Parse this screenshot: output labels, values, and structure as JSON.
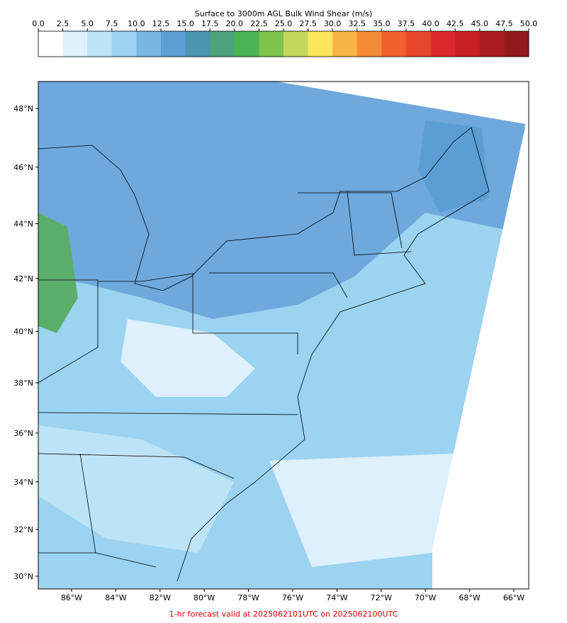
{
  "colorbar": {
    "title": "Surface to 3000m AGL Bulk Wind Shear (m/s)",
    "ticks": [
      {
        "value": 0,
        "label": "0.0"
      },
      {
        "value": 2.5,
        "label": "2.5"
      },
      {
        "value": 5,
        "label": "5.0"
      },
      {
        "value": 7.5,
        "label": "7.5"
      },
      {
        "value": 10,
        "label": "10.0"
      },
      {
        "value": 12.5,
        "label": "12.5"
      },
      {
        "value": 15,
        "label": "15.0"
      },
      {
        "value": 17.5,
        "label": "17.5"
      },
      {
        "value": 20,
        "label": "20.0"
      },
      {
        "value": 22.5,
        "label": "22.5"
      },
      {
        "value": 25,
        "label": "25.0"
      },
      {
        "value": 27.5,
        "label": "27.5"
      },
      {
        "value": 30,
        "label": "30.0"
      },
      {
        "value": 32.5,
        "label": "32.5"
      },
      {
        "value": 35,
        "label": "35.0"
      },
      {
        "value": 37.5,
        "label": "37.5"
      },
      {
        "value": 40,
        "label": "40.0"
      },
      {
        "value": 42.5,
        "label": "42.5"
      },
      {
        "value": 45,
        "label": "45.0"
      },
      {
        "value": 47.5,
        "label": "47.5"
      },
      {
        "value": 50,
        "label": "50.0"
      }
    ],
    "colors": [
      "#ffffff",
      "#ddf0fb",
      "#bde3f6",
      "#9bd3f0",
      "#78b7e2",
      "#5c9ed4",
      "#4a95b0",
      "#4aa37c",
      "#4ab355",
      "#7ec44c",
      "#c2d65a",
      "#f9e45a",
      "#f7b547",
      "#f48a35",
      "#f05f2c",
      "#e6472a",
      "#d9292a",
      "#c71e24",
      "#aa1c21",
      "#921a1c"
    ]
  },
  "map": {
    "lat_ticks": [
      {
        "value": 48,
        "label": "48°N"
      },
      {
        "value": 46,
        "label": "46°N"
      },
      {
        "value": 44,
        "label": "44°N"
      },
      {
        "value": 42,
        "label": "42°N"
      },
      {
        "value": 40,
        "label": "40°N"
      },
      {
        "value": 38,
        "label": "38°N"
      },
      {
        "value": 36,
        "label": "36°N"
      },
      {
        "value": 34,
        "label": "34°N"
      },
      {
        "value": 32,
        "label": "32°N"
      },
      {
        "value": 30,
        "label": "30°N"
      }
    ],
    "lon_ticks": [
      {
        "value": -86,
        "label": "86°W"
      },
      {
        "value": -84,
        "label": "84°W"
      },
      {
        "value": -82,
        "label": "82°W"
      },
      {
        "value": -80,
        "label": "80°W"
      },
      {
        "value": -78,
        "label": "78°W"
      },
      {
        "value": -76,
        "label": "76°W"
      },
      {
        "value": -74,
        "label": "74°W"
      },
      {
        "value": -72,
        "label": "72°W"
      },
      {
        "value": -70,
        "label": "70°W"
      },
      {
        "value": -68,
        "label": "68°W"
      },
      {
        "value": -66,
        "label": "66°W"
      }
    ]
  },
  "footer": "1-hr forecast valid at 2025062101UTC on 2025062100UTC"
}
